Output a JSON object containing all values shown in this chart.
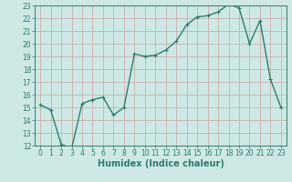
{
  "xlabel": "Humidex (Indice chaleur)",
  "x": [
    0,
    1,
    2,
    3,
    4,
    5,
    6,
    7,
    8,
    9,
    10,
    11,
    12,
    13,
    14,
    15,
    16,
    17,
    18,
    19,
    20,
    21,
    22,
    23
  ],
  "y": [
    15.2,
    14.8,
    12.1,
    11.8,
    15.3,
    15.6,
    15.8,
    14.4,
    15.0,
    19.2,
    19.0,
    19.1,
    19.5,
    20.2,
    21.5,
    22.1,
    22.2,
    22.5,
    23.1,
    22.8,
    20.0,
    21.8,
    17.2,
    15.0
  ],
  "line_color": "#2e7d6e",
  "marker": "+",
  "bg_color": "#cde8e5",
  "grid_color": "#b8d4d0",
  "tick_color": "#2e7d6e",
  "spine_color": "#2e7d6e",
  "ylim": [
    12,
    23
  ],
  "xlim": [
    -0.5,
    23.5
  ],
  "yticks": [
    12,
    13,
    14,
    15,
    16,
    17,
    18,
    19,
    20,
    21,
    22,
    23
  ],
  "xticks": [
    0,
    1,
    2,
    3,
    4,
    5,
    6,
    7,
    8,
    9,
    10,
    11,
    12,
    13,
    14,
    15,
    16,
    17,
    18,
    19,
    20,
    21,
    22,
    23
  ],
  "fontsize_ticks": 5.5,
  "fontsize_label": 7,
  "linewidth": 1.0,
  "markersize": 3
}
